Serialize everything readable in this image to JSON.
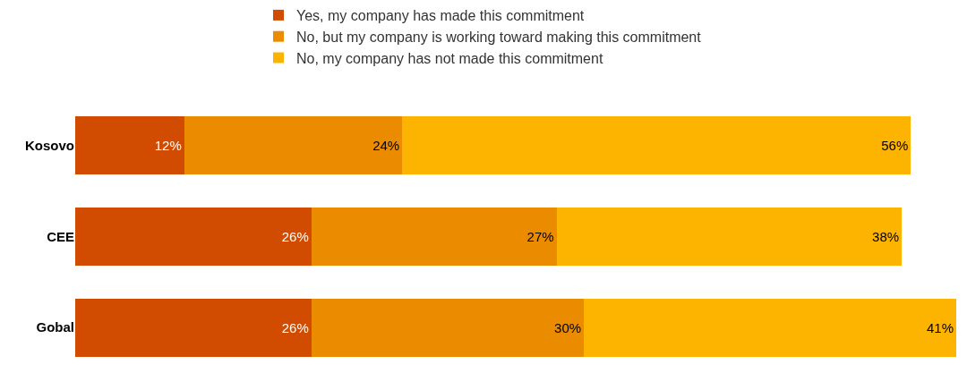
{
  "chart_data": {
    "type": "bar",
    "orientation": "horizontal",
    "stacked": true,
    "categories": [
      "Kosovo",
      "CEE",
      "Gobal"
    ],
    "series": [
      {
        "name": "Yes, my company has made this commitment",
        "color": "#d14b00",
        "values": [
          12,
          26,
          26
        ],
        "value_labels": [
          "12%",
          "26%",
          "26%"
        ]
      },
      {
        "name": "No, but my company is working toward making this commitment",
        "color": "#ea8b00",
        "values": [
          24,
          27,
          30
        ],
        "value_labels": [
          "24%",
          "27%",
          "30%"
        ]
      },
      {
        "name": "No, my company has not made this commitment",
        "color": "#fdb400",
        "values": [
          56,
          38,
          41
        ],
        "value_labels": [
          "56%",
          "38%",
          "41%"
        ]
      }
    ],
    "xlim": [
      0,
      97
    ],
    "tick_labels": "y",
    "legend": "top"
  }
}
